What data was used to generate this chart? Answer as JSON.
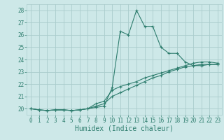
{
  "xlabel": "Humidex (Indice chaleur)",
  "xlim": [
    -0.5,
    23.5
  ],
  "ylim": [
    19.5,
    28.5
  ],
  "yticks": [
    20,
    21,
    22,
    23,
    24,
    25,
    26,
    27,
    28
  ],
  "xticks": [
    0,
    1,
    2,
    3,
    4,
    5,
    6,
    7,
    8,
    9,
    10,
    11,
    12,
    13,
    14,
    15,
    16,
    17,
    18,
    19,
    20,
    21,
    22,
    23
  ],
  "background_color": "#cde8e8",
  "grid_color": "#aacccc",
  "line_color": "#2e7d6e",
  "series1_x": [
    0,
    1,
    2,
    3,
    4,
    5,
    6,
    7,
    8,
    9,
    10,
    11,
    12,
    13,
    14,
    15,
    16,
    17,
    18,
    19,
    20,
    21,
    22,
    23
  ],
  "series1_y": [
    20.0,
    19.9,
    19.85,
    19.9,
    19.9,
    19.85,
    19.9,
    20.0,
    20.1,
    20.2,
    21.7,
    26.3,
    26.0,
    28.0,
    26.7,
    26.7,
    25.0,
    24.5,
    24.5,
    23.8,
    23.5,
    23.5,
    23.6,
    23.6
  ],
  "series2_x": [
    0,
    1,
    2,
    3,
    4,
    5,
    6,
    7,
    8,
    9,
    10,
    11,
    12,
    13,
    14,
    15,
    16,
    17,
    18,
    19,
    20,
    21,
    22,
    23
  ],
  "series2_y": [
    20.0,
    19.9,
    19.85,
    19.9,
    19.9,
    19.85,
    19.9,
    20.0,
    20.4,
    20.6,
    21.5,
    21.8,
    22.0,
    22.2,
    22.5,
    22.7,
    22.9,
    23.1,
    23.3,
    23.5,
    23.7,
    23.8,
    23.8,
    23.7
  ],
  "series3_x": [
    0,
    1,
    2,
    3,
    4,
    5,
    6,
    7,
    8,
    9,
    10,
    11,
    12,
    13,
    14,
    15,
    16,
    17,
    18,
    19,
    20,
    21,
    22,
    23
  ],
  "series3_y": [
    20.0,
    19.9,
    19.85,
    19.9,
    19.9,
    19.85,
    19.9,
    20.0,
    20.2,
    20.4,
    21.0,
    21.3,
    21.6,
    21.9,
    22.2,
    22.5,
    22.7,
    23.0,
    23.2,
    23.4,
    23.5,
    23.6,
    23.6,
    23.6
  ],
  "tick_fontsize": 5.5,
  "xlabel_fontsize": 7,
  "lw": 0.8,
  "ms": 2.5
}
